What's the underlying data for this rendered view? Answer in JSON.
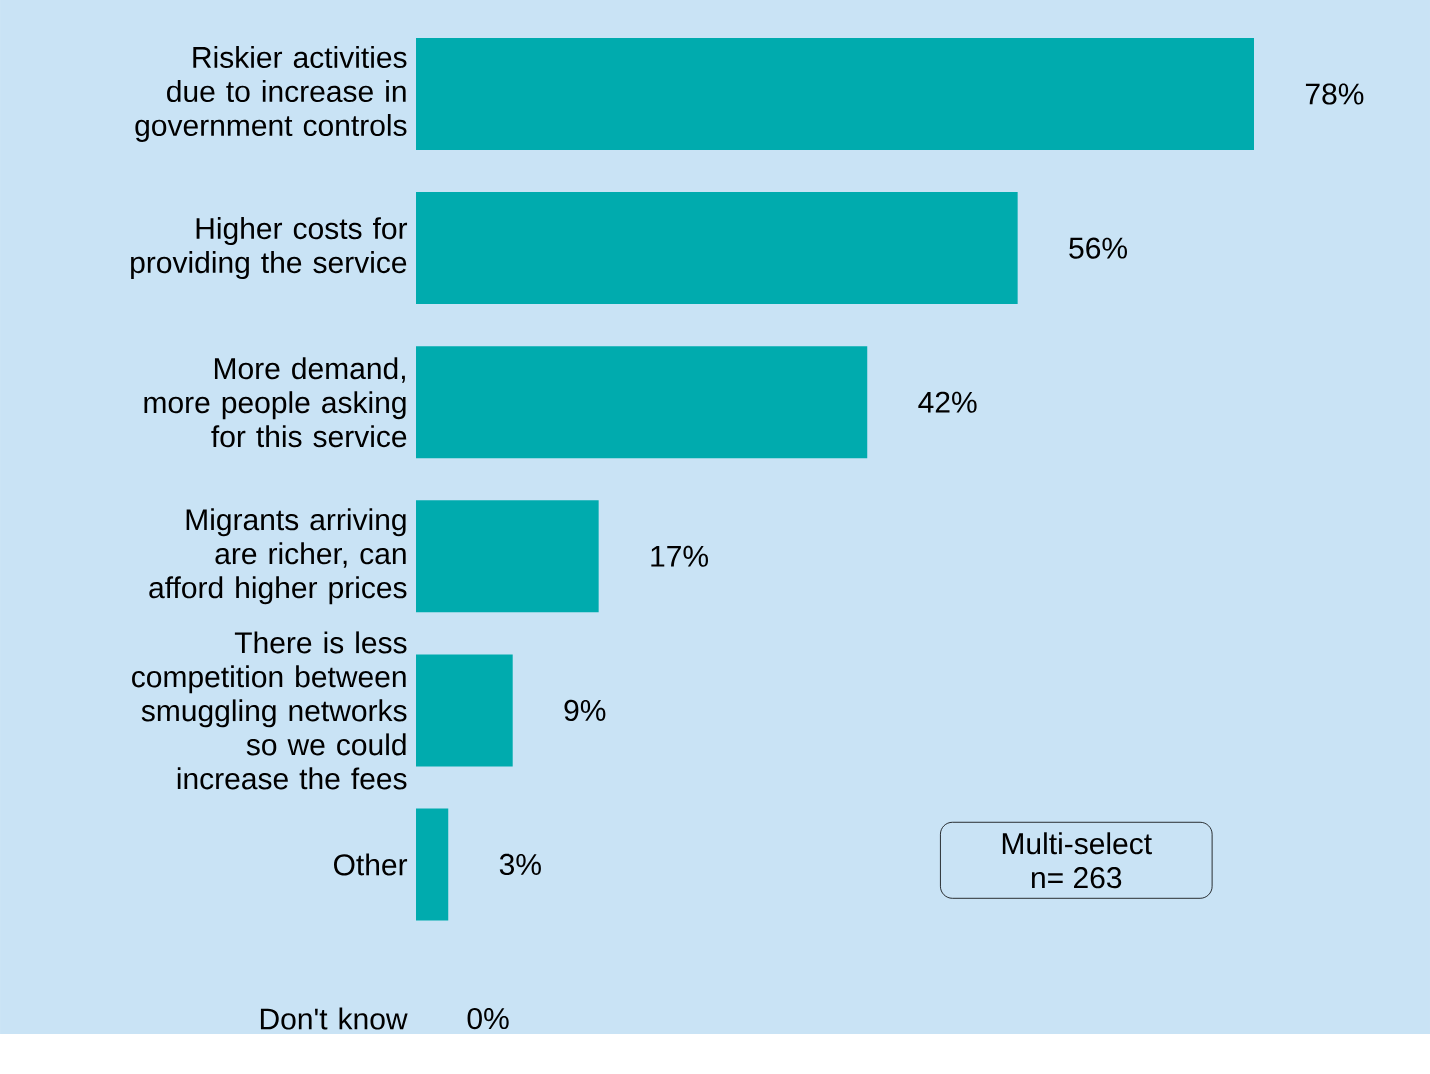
{
  "chart_data": {
    "type": "bar",
    "orientation": "horizontal",
    "categories": [
      "Riskier activities due to increase in government controls",
      "Higher costs for providing the service",
      "More demand, more people asking for this service",
      "Migrants arriving are richer, can afford higher prices",
      "There is less competition between smuggling networks so we could increase the fees",
      "Other",
      "Don't know"
    ],
    "values": [
      78,
      56,
      42,
      17,
      9,
      3,
      0
    ],
    "value_labels": [
      "78%",
      "56%",
      "42%",
      "17%",
      "9%",
      "3%",
      "0%"
    ],
    "color": "#00abae",
    "annotations": [
      "Multi-select",
      "n= 263"
    ]
  }
}
